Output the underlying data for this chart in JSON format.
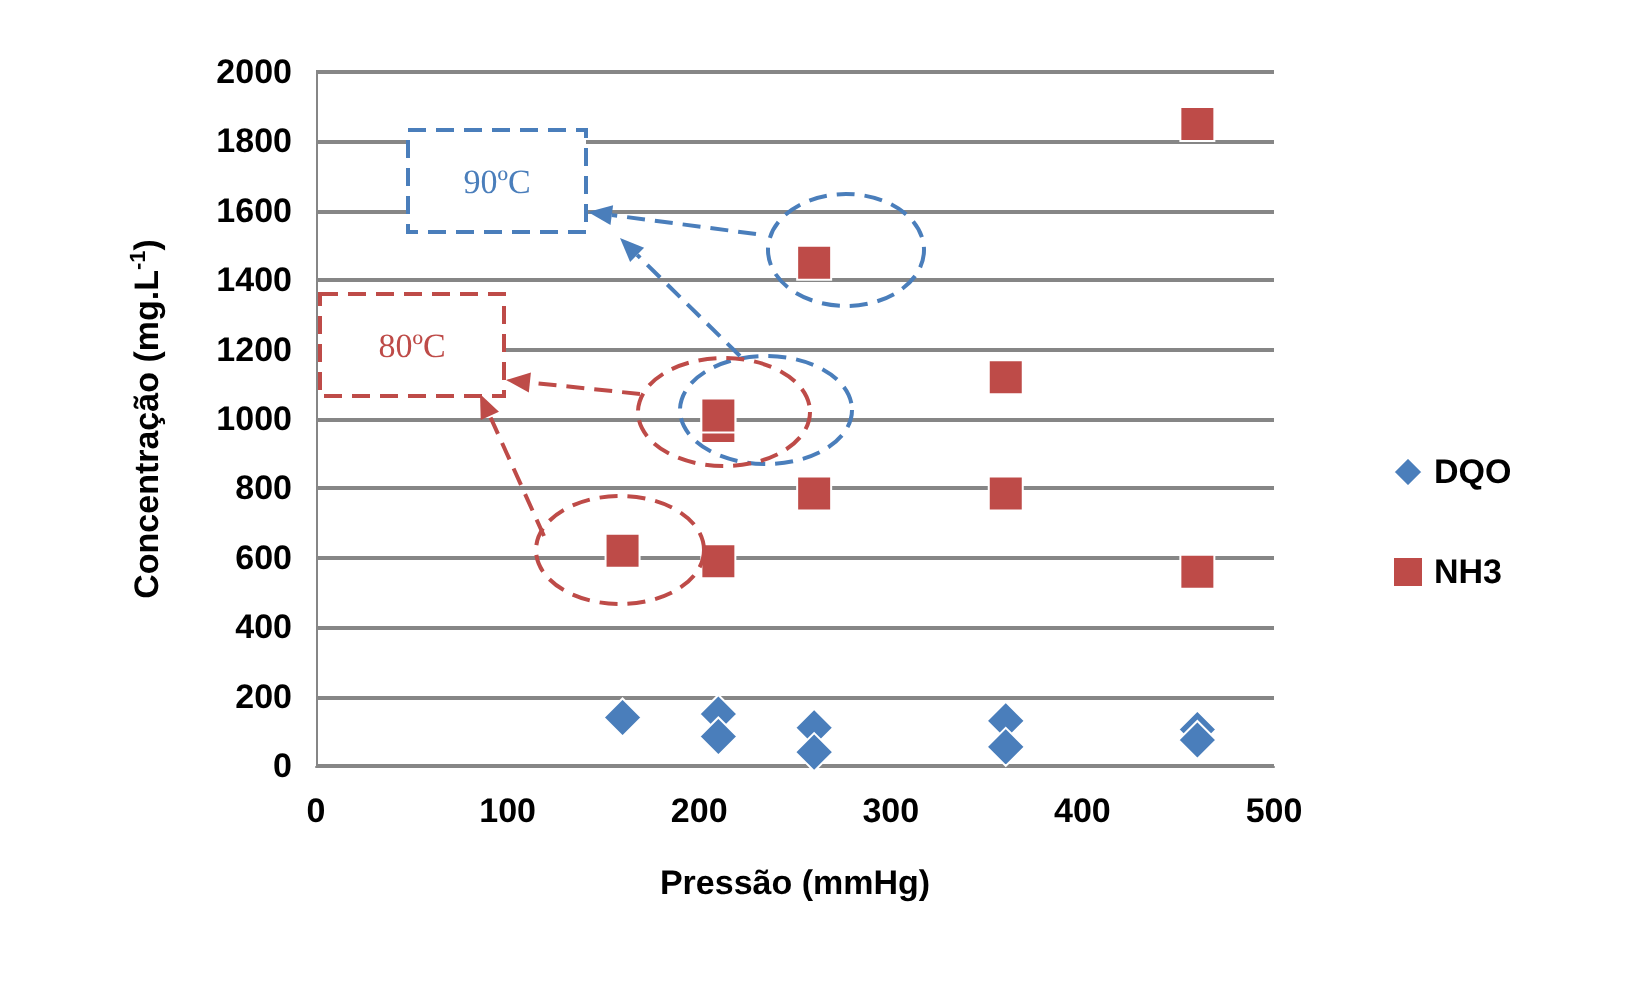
{
  "chart_data": {
    "type": "scatter",
    "xlabel": "Pressão (mmHg)",
    "ylabel": "Concentração (mg.L$^{-1}$)",
    "xlim": [
      0,
      500
    ],
    "xticks": [
      0,
      100,
      200,
      300,
      400,
      500
    ],
    "ylim": [
      0,
      2000
    ],
    "yticks": [
      0,
      200,
      400,
      600,
      800,
      1000,
      1200,
      1400,
      1600,
      1800,
      2000
    ],
    "grid": "y",
    "legend": "right",
    "annotations": [
      "90ºC",
      "80ºC"
    ],
    "series": [
      {
        "name": "DQO",
        "color": "#4a7ebb",
        "marker": "diamond",
        "x": [
          160,
          210,
          210,
          260,
          260,
          360,
          360,
          460,
          460
        ],
        "values": [
          140,
          150,
          85,
          110,
          40,
          130,
          55,
          105,
          75
        ]
      },
      {
        "name": "NH3",
        "color": "#be4b48",
        "marker": "square",
        "x": [
          160,
          210,
          210,
          210,
          260,
          260,
          360,
          360,
          460,
          460
        ],
        "values": [
          620,
          590,
          980,
          1010,
          1450,
          785,
          1120,
          785,
          1850,
          560
        ]
      }
    ]
  }
}
